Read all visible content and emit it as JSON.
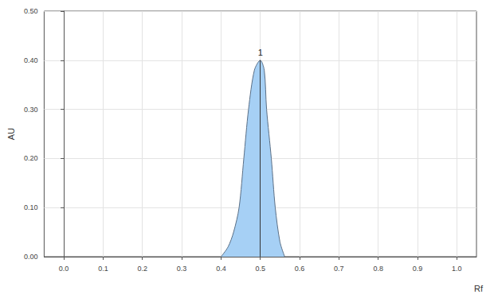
{
  "chart_data": {
    "type": "area",
    "xlabel": "Rf",
    "ylabel": "AU",
    "x": [
      0.4,
      0.418,
      0.432,
      0.446,
      0.458,
      0.47,
      0.485,
      0.5,
      0.51,
      0.516,
      0.528,
      0.538,
      0.55,
      0.562
    ],
    "values": [
      0,
      0.02,
      0.05,
      0.1,
      0.2,
      0.3,
      0.38,
      0.4,
      0.38,
      0.3,
      0.2,
      0.1,
      0.03,
      0
    ],
    "color": "#a6d0f5",
    "xlim": [
      -0.05,
      1.05
    ],
    "ylim": [
      0,
      0.5
    ],
    "xticks": [
      {
        "value": 0,
        "label": "0.0"
      },
      0.1,
      0.2,
      0.3,
      0.4,
      0.5,
      0.6,
      0.7,
      0.8,
      0.9,
      {
        "value": 1,
        "label": "1.0"
      }
    ],
    "yticks": [
      {
        "value": 0,
        "label": "0.00"
      },
      {
        "value": 0.1,
        "label": "0.10"
      },
      {
        "value": 0.2,
        "label": "0.20"
      },
      {
        "value": 0.3,
        "label": "0.30"
      },
      {
        "value": 0.4,
        "label": "0.40"
      },
      {
        "value": 0.5,
        "label": "0.50"
      }
    ],
    "annotations": [
      {
        "text": "1",
        "x": 0.5,
        "y": 0.4
      }
    ],
    "grid": true
  }
}
